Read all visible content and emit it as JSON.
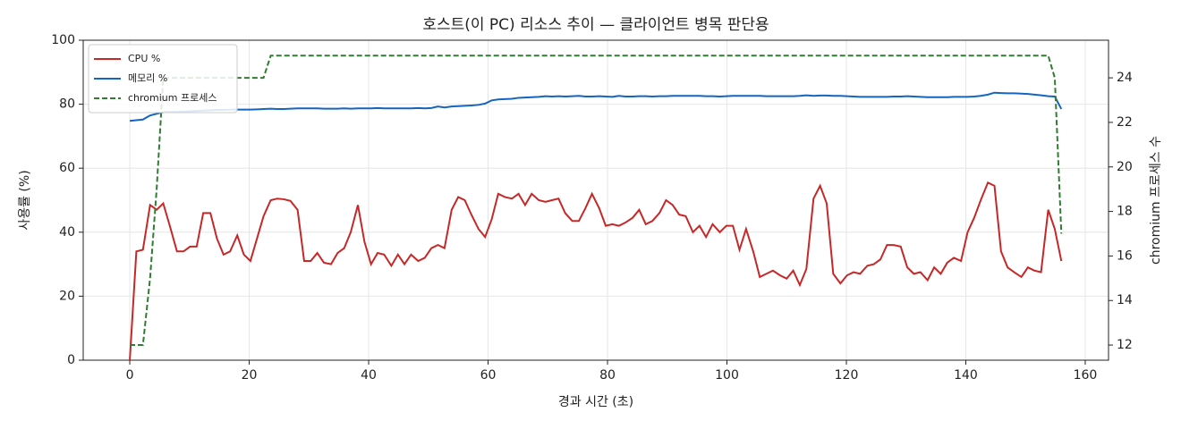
{
  "chart_data": {
    "type": "line",
    "title": "호스트(이 PC) 리소스 추이 — 클라이언트 병목 판단용",
    "x_label": "경과 시간 (초)",
    "y_label": "사용률 (%)",
    "y2_label": "chromium 프로세스 수",
    "x": [
      0,
      1.1,
      2.2,
      3.4,
      4.5,
      5.6,
      6.7,
      7.9,
      9.0,
      10.1,
      11.2,
      12.3,
      13.5,
      14.6,
      15.7,
      16.8,
      18.0,
      19.1,
      20.2,
      21.3,
      22.4,
      23.6,
      24.7,
      25.8,
      26.9,
      28.1,
      29.2,
      30.3,
      31.4,
      32.5,
      33.7,
      34.8,
      35.9,
      37.0,
      38.2,
      39.3,
      40.4,
      41.5,
      42.6,
      43.8,
      44.9,
      46.0,
      47.1,
      48.3,
      49.4,
      50.5,
      51.6,
      52.7,
      53.9,
      55.0,
      56.1,
      57.2,
      58.4,
      59.5,
      60.6,
      61.7,
      62.8,
      64.0,
      65.1,
      66.2,
      67.3,
      68.5,
      69.6,
      70.7,
      71.8,
      72.9,
      74.1,
      75.2,
      76.3,
      77.4,
      78.6,
      79.7,
      80.8,
      81.9,
      83.0,
      84.2,
      85.3,
      86.4,
      87.5,
      88.7,
      89.8,
      90.9,
      92.0,
      93.1,
      94.3,
      95.4,
      96.5,
      97.6,
      98.8,
      99.9,
      101.0,
      102.1,
      103.2,
      104.4,
      105.5,
      106.6,
      107.7,
      108.9,
      110.0,
      111.1,
      112.2,
      113.3,
      114.5,
      115.6,
      116.7,
      117.8,
      119.0,
      120.1,
      121.2,
      122.3,
      123.5,
      124.6,
      125.7,
      126.8,
      127.9,
      129.1,
      130.2,
      131.3,
      132.4,
      133.6,
      134.7,
      135.8,
      136.9,
      138.0,
      139.2,
      140.3,
      141.4,
      142.5,
      143.7,
      144.8,
      145.9,
      147.0,
      148.1,
      149.3,
      150.4,
      151.5,
      152.6,
      153.8,
      154.9,
      156.0
    ],
    "series": [
      {
        "name": "CPU %",
        "color": "#c62828",
        "linestyle": "solid",
        "values": [
          0,
          34,
          34.5,
          48.5,
          47,
          49,
          42,
          34,
          34,
          35.5,
          35.5,
          46,
          46,
          38,
          33,
          34,
          39,
          33,
          31,
          38,
          45,
          50,
          50.5,
          50.3,
          49.8,
          47,
          31,
          31,
          33.5,
          30.5,
          30,
          33.5,
          35,
          40,
          48.5,
          37,
          30,
          33.5,
          33,
          29.5,
          33,
          30,
          33,
          31,
          32,
          35,
          36,
          35,
          47,
          51,
          50,
          45.5,
          41,
          38.5,
          44,
          52,
          51,
          50.5,
          52,
          48.5,
          52,
          50,
          49.5,
          50,
          50.5,
          46,
          43.5,
          43.5,
          47.5,
          52,
          47.5,
          42,
          42.5,
          42,
          43,
          44.5,
          47,
          42.5,
          43.5,
          46,
          50,
          48.5,
          45.5,
          45,
          40,
          42,
          38.5,
          42.5,
          40,
          42,
          42,
          34.5,
          41,
          34,
          26,
          27,
          28,
          26.5,
          25.5,
          28,
          23.5,
          28.5,
          50.5,
          54.5,
          49,
          27,
          24,
          26.5,
          27.5,
          27,
          29.5,
          30,
          31.5,
          36,
          36,
          35.5,
          29,
          27,
          27.5,
          25,
          29,
          27,
          30.5,
          32,
          31,
          40,
          44.5,
          50,
          55.5,
          54.5,
          34,
          29,
          27.5,
          26,
          29,
          28,
          27.5,
          47,
          41,
          31
        ]
      },
      {
        "name": "메모리 %",
        "color": "#1565c0",
        "linestyle": "solid",
        "values": [
          74.8,
          75,
          75.2,
          76.5,
          77,
          77.5,
          77.6,
          77.6,
          77.7,
          77.8,
          77.9,
          78,
          78.1,
          78.2,
          78.2,
          78.3,
          78.3,
          78.3,
          78.3,
          78.4,
          78.5,
          78.6,
          78.5,
          78.5,
          78.6,
          78.7,
          78.7,
          78.7,
          78.7,
          78.6,
          78.6,
          78.6,
          78.7,
          78.6,
          78.7,
          78.7,
          78.7,
          78.8,
          78.7,
          78.7,
          78.7,
          78.7,
          78.7,
          78.8,
          78.7,
          78.8,
          79.3,
          79,
          79.3,
          79.4,
          79.5,
          79.6,
          79.8,
          80.2,
          81.2,
          81.5,
          81.6,
          81.7,
          82,
          82.1,
          82.2,
          82.3,
          82.5,
          82.4,
          82.5,
          82.4,
          82.5,
          82.6,
          82.4,
          82.4,
          82.5,
          82.4,
          82.3,
          82.6,
          82.4,
          82.4,
          82.5,
          82.5,
          82.4,
          82.5,
          82.5,
          82.6,
          82.6,
          82.6,
          82.6,
          82.6,
          82.5,
          82.5,
          82.4,
          82.5,
          82.6,
          82.6,
          82.6,
          82.6,
          82.6,
          82.5,
          82.5,
          82.5,
          82.5,
          82.5,
          82.6,
          82.8,
          82.6,
          82.7,
          82.7,
          82.6,
          82.6,
          82.5,
          82.4,
          82.3,
          82.3,
          82.3,
          82.3,
          82.3,
          82.4,
          82.4,
          82.5,
          82.4,
          82.3,
          82.2,
          82.2,
          82.2,
          82.2,
          82.3,
          82.3,
          82.3,
          82.4,
          82.6,
          83,
          83.6,
          83.5,
          83.4,
          83.4,
          83.3,
          83.2,
          83,
          82.8,
          82.5,
          82.4,
          78.5
        ]
      },
      {
        "name": "chromium 프로세스",
        "color": "#2e7d32",
        "linestyle": "dashed",
        "axis": "y2",
        "values": [
          12,
          12,
          12,
          15,
          19,
          24,
          24,
          24,
          24,
          24,
          24,
          24,
          24,
          24,
          24,
          24,
          24,
          24,
          24,
          24,
          24,
          25,
          25,
          25,
          25,
          25,
          25,
          25,
          25,
          25,
          25,
          25,
          25,
          25,
          25,
          25,
          25,
          25,
          25,
          25,
          25,
          25,
          25,
          25,
          25,
          25,
          25,
          25,
          25,
          25,
          25,
          25,
          25,
          25,
          25,
          25,
          25,
          25,
          25,
          25,
          25,
          25,
          25,
          25,
          25,
          25,
          25,
          25,
          25,
          25,
          25,
          25,
          25,
          25,
          25,
          25,
          25,
          25,
          25,
          25,
          25,
          25,
          25,
          25,
          25,
          25,
          25,
          25,
          25,
          25,
          25,
          25,
          25,
          25,
          25,
          25,
          25,
          25,
          25,
          25,
          25,
          25,
          25,
          25,
          25,
          25,
          25,
          25,
          25,
          25,
          25,
          25,
          25,
          25,
          25,
          25,
          25,
          25,
          25,
          25,
          25,
          25,
          25,
          25,
          25,
          25,
          25,
          25,
          25,
          25,
          25,
          25,
          25,
          25,
          25,
          25,
          25,
          25,
          24,
          17
        ]
      }
    ],
    "xlim": [
      -7.8,
      163.9
    ],
    "xticks": [
      0,
      20,
      40,
      60,
      80,
      100,
      120,
      140,
      160
    ],
    "ylim": [
      0,
      100
    ],
    "yticks": [
      0,
      20,
      40,
      60,
      80,
      100
    ],
    "y2lim": [
      11.32,
      25.69
    ],
    "y2ticks": [
      12,
      14,
      16,
      18,
      20,
      22,
      24
    ],
    "grid": true,
    "legend": "upper left"
  }
}
